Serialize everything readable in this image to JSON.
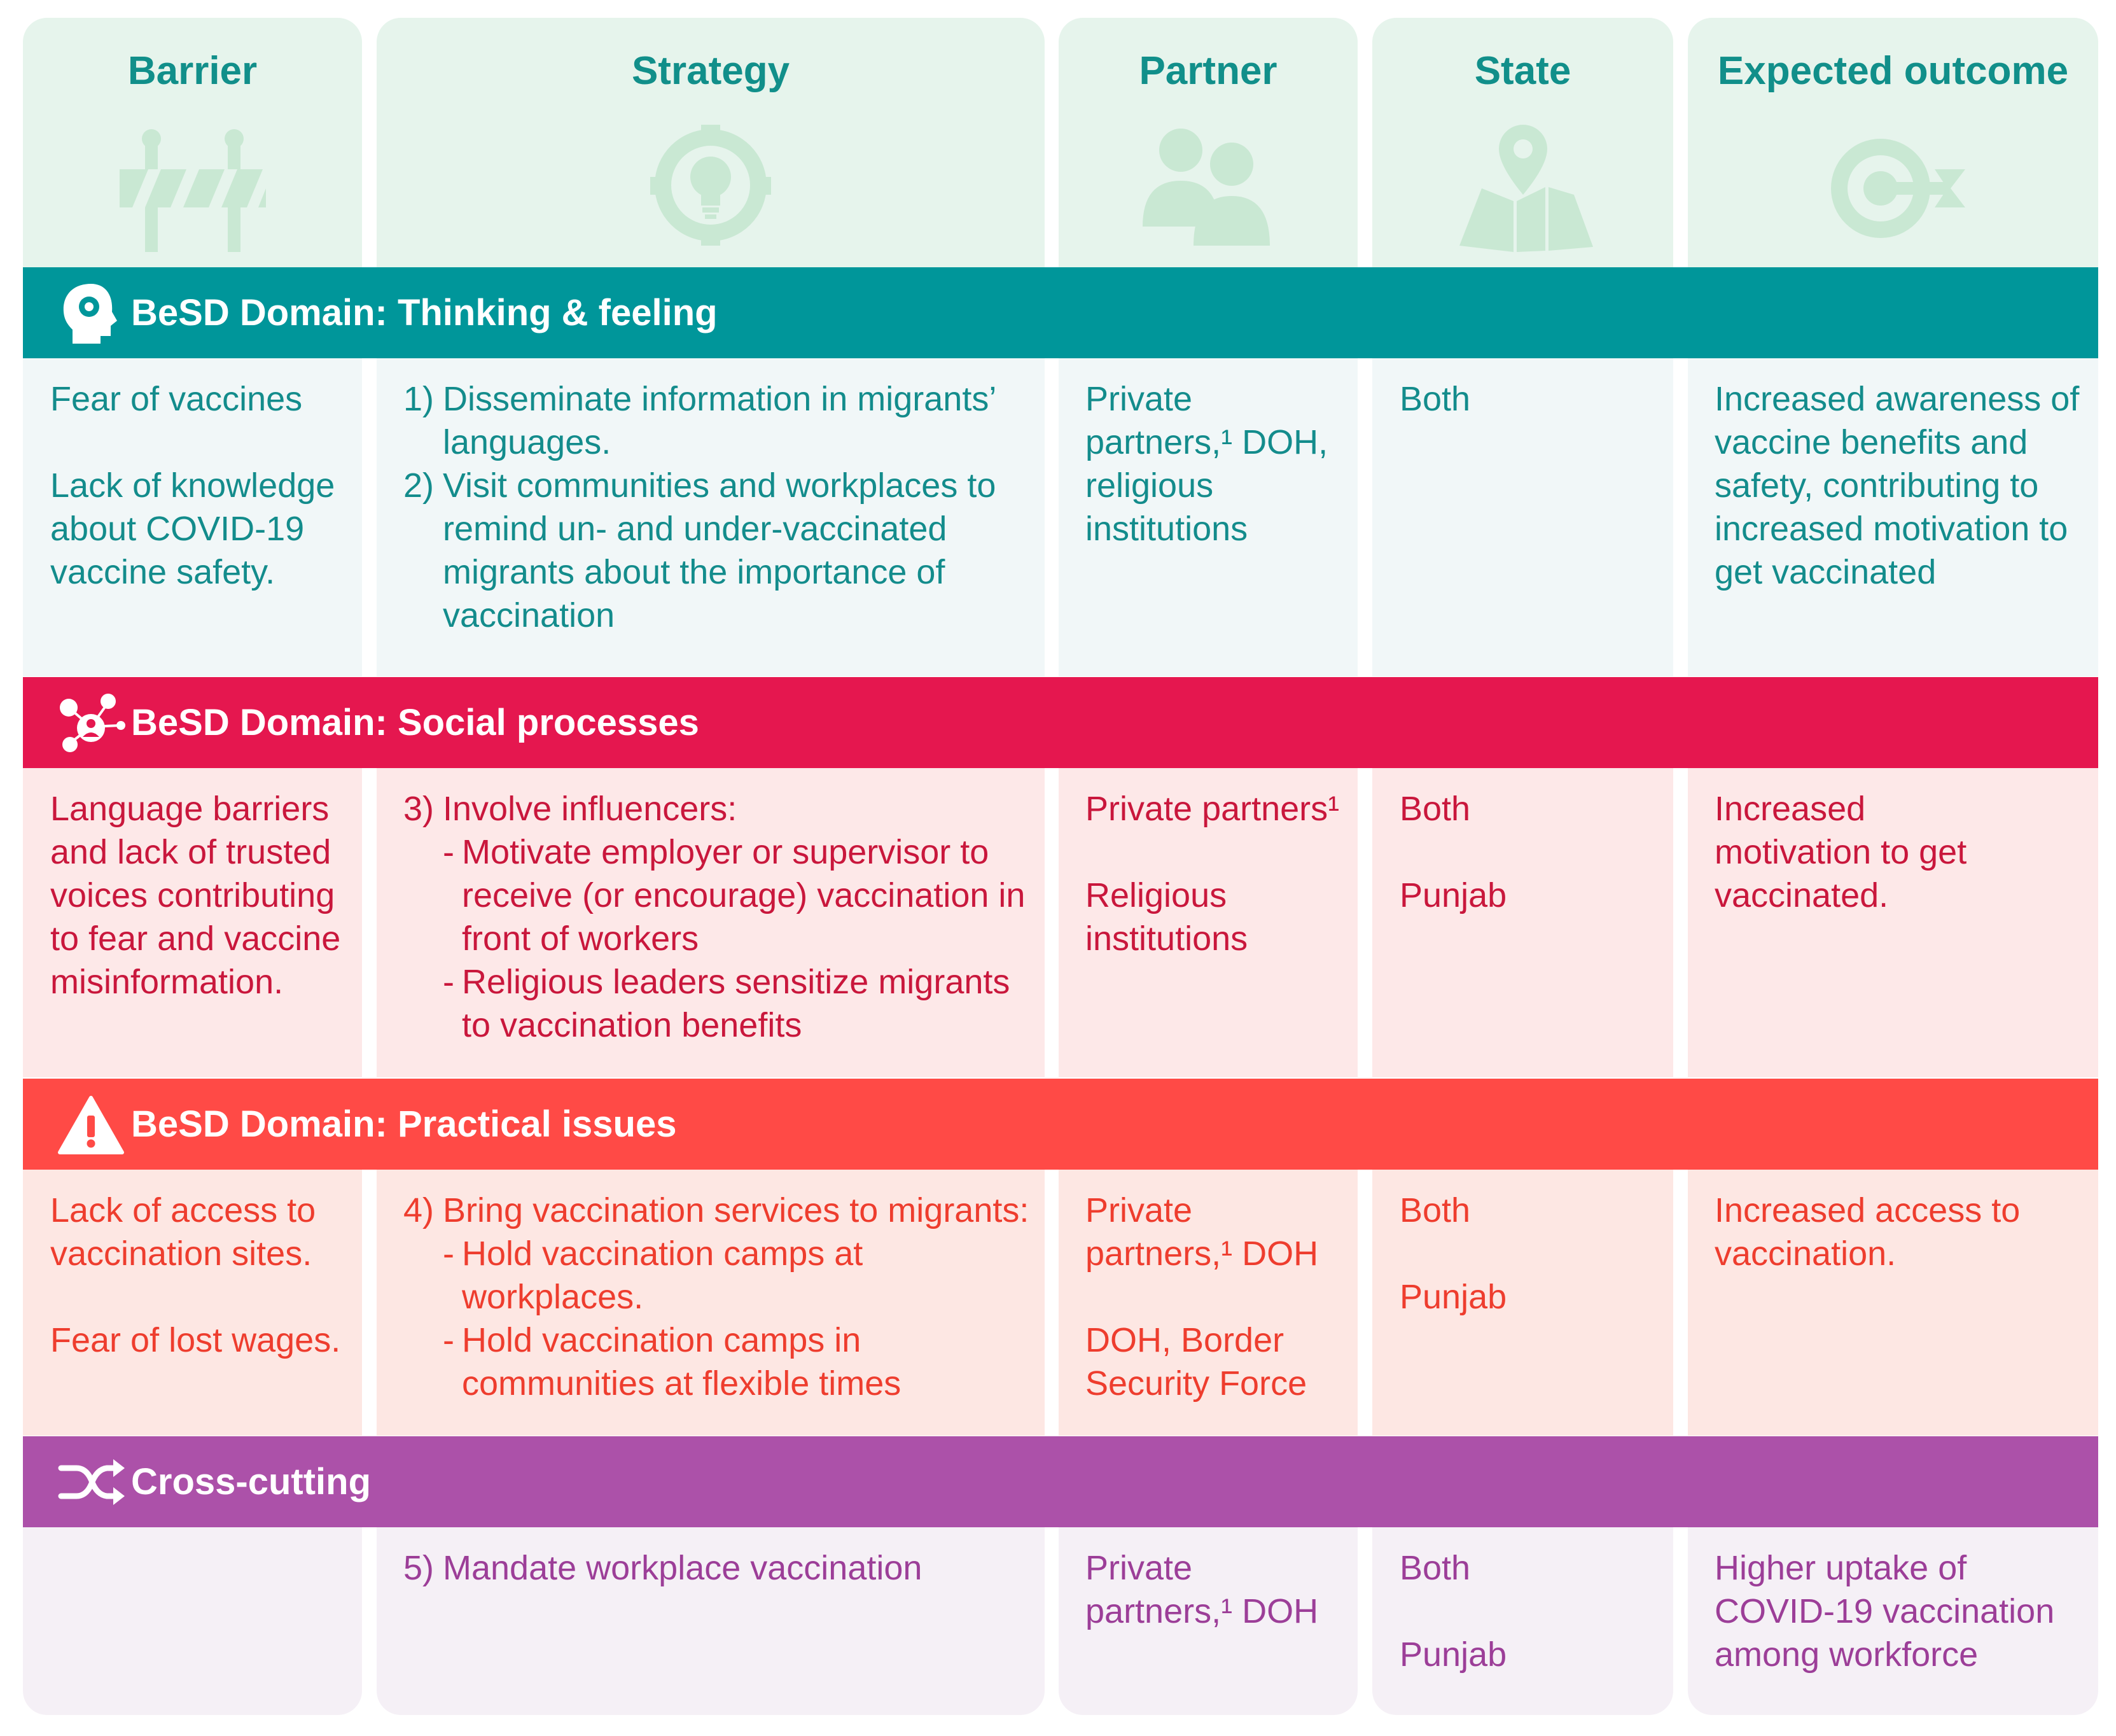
{
  "headers": {
    "barrier": "Barrier",
    "strategy": "Strategy",
    "partner": "Partner",
    "state": "State",
    "outcome": "Expected outcome"
  },
  "icons": {
    "barrier": "barrier-icon",
    "strategy": "lightbulb-gear-icon",
    "partner": "people-icon",
    "state": "map-pin-icon",
    "outcome": "target-arrow-icon"
  },
  "colors": {
    "thinking": "#00969a",
    "social": "#e5174f",
    "practical": "#ff4a46",
    "cross": "#ac51a9",
    "header_text": "#118f8a",
    "header_bg": "#e6f4ec"
  },
  "domains": {
    "thinking": {
      "label": "BeSD Domain: Thinking & feeling",
      "barrier": [
        "Fear of vaccines",
        "Lack of knowledge about COVID-19 vaccine safety."
      ],
      "strategy": [
        {
          "num": "1)",
          "text": "Disseminate information in migrants’ languages."
        },
        {
          "num": "2)",
          "text": "Visit communities and workplaces to remind un- and under-vaccinated migrants about the importance of vaccination"
        }
      ],
      "partner": "Private partners,¹ DOH, religious institutions",
      "state": "Both",
      "outcome": "Increased awareness of vaccine benefits and safety, contributing to increased motivation to get vaccinated"
    },
    "social": {
      "label": "BeSD Domain: Social processes",
      "barrier": "Language barriers and lack of trusted voices contributing to fear and vaccine misinformation.",
      "strategy_num": "3)",
      "strategy_title": "Involve influencers:",
      "strategy_items": [
        "Motivate employer or supervisor to receive (or encourage) vaccination in front of workers",
        "Religious leaders sensitize migrants to vaccination benefits"
      ],
      "partner": [
        "Private partners¹",
        "Religious institutions"
      ],
      "state": [
        "Both",
        "Punjab"
      ],
      "outcome": "Increased motivation to get vaccinated."
    },
    "practical": {
      "label": "BeSD Domain: Practical issues",
      "barrier": [
        "Lack of access to vaccination sites.",
        "Fear of lost wages."
      ],
      "strategy_num": "4)",
      "strategy_title": "Bring vaccination services to migrants:",
      "strategy_items": [
        "Hold vaccination camps at workplaces.",
        "Hold vaccination camps in communities at flexible times"
      ],
      "partner": [
        "Private partners,¹ DOH",
        "DOH, Border Security Force"
      ],
      "state": [
        "Both",
        "Punjab"
      ],
      "outcome": "Increased access to vaccination."
    },
    "cross": {
      "label": "Cross-cutting",
      "strategy_num": "5)",
      "strategy": "Mandate workplace vaccination",
      "partner": "Private partners,¹ DOH",
      "state": [
        "Both",
        "Punjab"
      ],
      "outcome": "Higher uptake of COVID-19 vaccination among workforce"
    }
  }
}
